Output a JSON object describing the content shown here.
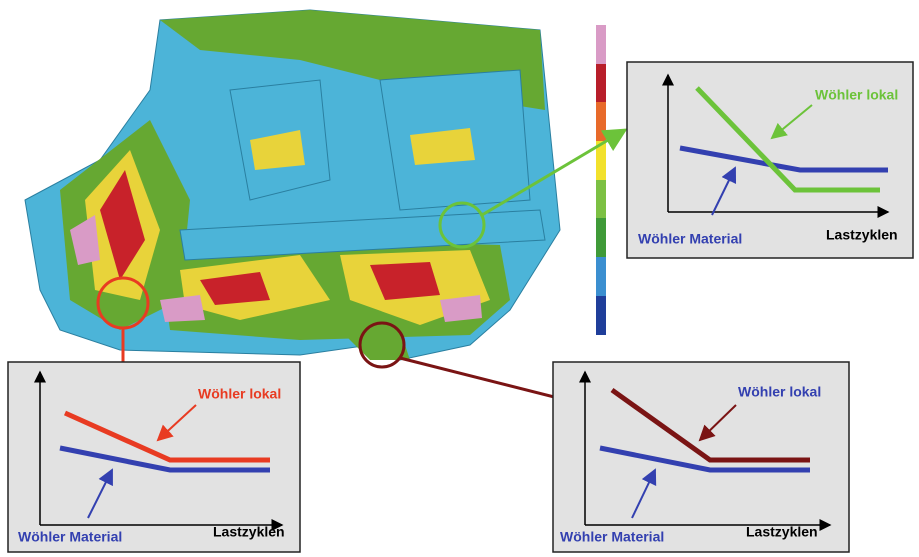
{
  "panels": [
    {
      "local_label": "Wöhler lokal",
      "material_label": "Wöhler Material",
      "x_axis_label": "Lastzyklen"
    },
    {
      "local_label": "Wöhler lokal",
      "material_label": "Wöhler Material",
      "x_axis_label": "Lastzyklen"
    },
    {
      "local_label": "Wöhler lokal",
      "material_label": "Wöhler Material",
      "x_axis_label": "Lastzyklen"
    }
  ]
}
